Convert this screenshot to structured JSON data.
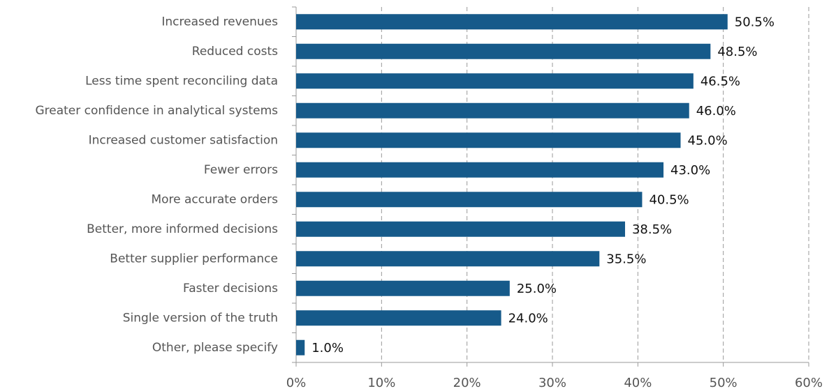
{
  "chart_data": {
    "type": "bar",
    "orientation": "horizontal",
    "categories": [
      "Increased revenues",
      "Reduced costs",
      "Less time spent reconciling data",
      "Greater confidence in analytical systems",
      "Increased customer satisfaction",
      "Fewer errors",
      "More accurate orders",
      "Better, more informed decisions",
      "Better supplier performance",
      "Faster decisions",
      "Single version of the truth",
      "Other, please specify"
    ],
    "values": [
      50.5,
      48.5,
      46.5,
      46.0,
      45.0,
      43.0,
      40.5,
      38.5,
      35.5,
      25.0,
      24.0,
      1.0
    ],
    "value_labels": [
      "50.5%",
      "48.5%",
      "46.5%",
      "46.0%",
      "45.0%",
      "43.0%",
      "40.5%",
      "38.5%",
      "35.5%",
      "25.0%",
      "24.0%",
      "1.0%"
    ],
    "color": "#165a8a",
    "xlim": [
      0,
      60
    ],
    "xticks": [
      {
        "value": 0,
        "label": "0%"
      },
      {
        "value": 10,
        "label": "10%"
      },
      {
        "value": 20,
        "label": "20%"
      },
      {
        "value": 30,
        "label": "30%"
      },
      {
        "value": 40,
        "label": "40%"
      },
      {
        "value": 50,
        "label": "50%"
      },
      {
        "value": 60,
        "label": "60%"
      }
    ],
    "grid": true
  }
}
